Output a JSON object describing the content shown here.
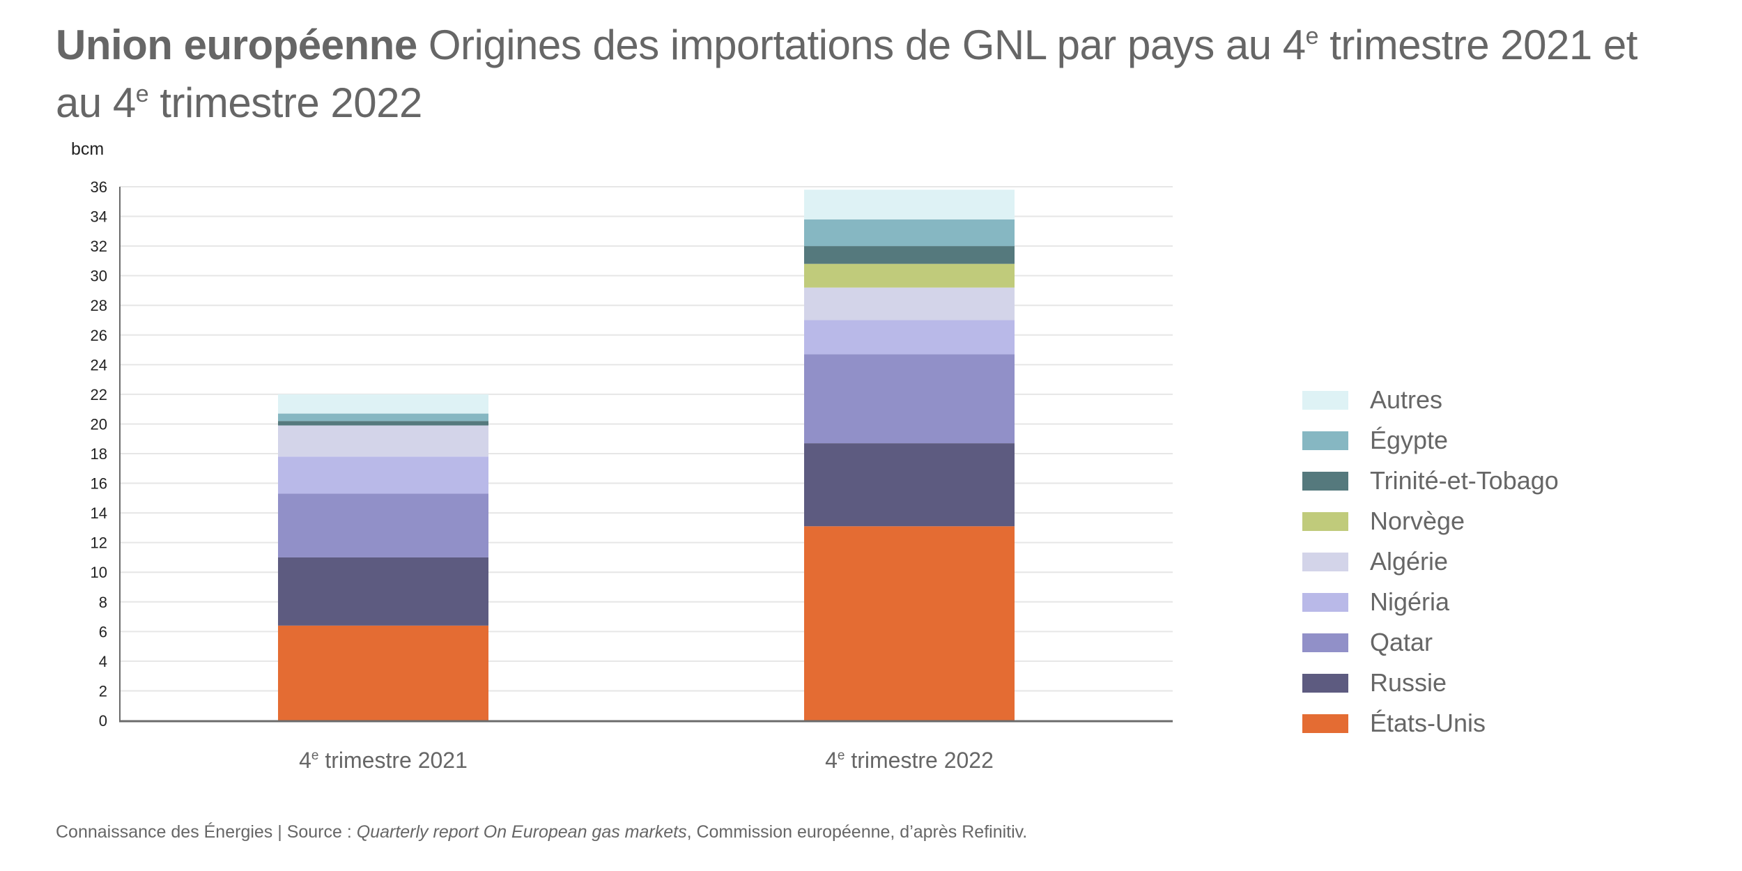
{
  "title": {
    "bold": "Union européenne",
    "line1_pre": "Origines des importations de GNL par pays au 4",
    "line1_sup": "e",
    "line1_post": " trimestre 2021 et",
    "line2_pre": "au 4",
    "line2_sup": "e",
    "line2_post": " trimestre 2022"
  },
  "footer": {
    "pre": "Connaissance des Énergies | Source : ",
    "italic": "Quarterly report On European gas markets",
    "post": ", Commission européenne, d’après Refinitiv."
  },
  "chart_data": {
    "type": "bar",
    "stacked": true,
    "title": "Union européenne Origines des importations de GNL par pays au 4e trimestre 2021 et au 4e trimestre 2022",
    "xlabel": "",
    "ylabel": "bcm",
    "ylim": [
      0,
      36
    ],
    "yticks": [
      0,
      2,
      4,
      6,
      8,
      10,
      12,
      14,
      16,
      18,
      20,
      22,
      24,
      26,
      28,
      30,
      32,
      34,
      36
    ],
    "grid": true,
    "legend_position": "right",
    "categories": [
      {
        "pre": "4",
        "sup": "e",
        "post": " trimestre 2021"
      },
      {
        "pre": "4",
        "sup": "e",
        "post": " trimestre 2022"
      }
    ],
    "series": [
      {
        "name": "États-Unis",
        "color": "#e46c33",
        "values": [
          6.4,
          13.1
        ]
      },
      {
        "name": "Russie",
        "color": "#5d5b80",
        "values": [
          4.6,
          5.6
        ]
      },
      {
        "name": "Qatar",
        "color": "#9190c8",
        "values": [
          4.3,
          6.0
        ]
      },
      {
        "name": "Nigéria",
        "color": "#b9b9e8",
        "values": [
          2.5,
          2.3
        ]
      },
      {
        "name": "Algérie",
        "color": "#d3d4e9",
        "values": [
          2.1,
          2.2
        ]
      },
      {
        "name": "Norvège",
        "color": "#c0cb7b",
        "values": [
          0.0,
          1.6
        ]
      },
      {
        "name": "Trinité-et-Tobago",
        "color": "#55797d",
        "values": [
          0.3,
          1.2
        ]
      },
      {
        "name": "Égypte",
        "color": "#86b7c2",
        "values": [
          0.5,
          1.8
        ]
      },
      {
        "name": "Autres",
        "color": "#def2f5",
        "values": [
          1.3,
          2.0
        ]
      }
    ]
  }
}
